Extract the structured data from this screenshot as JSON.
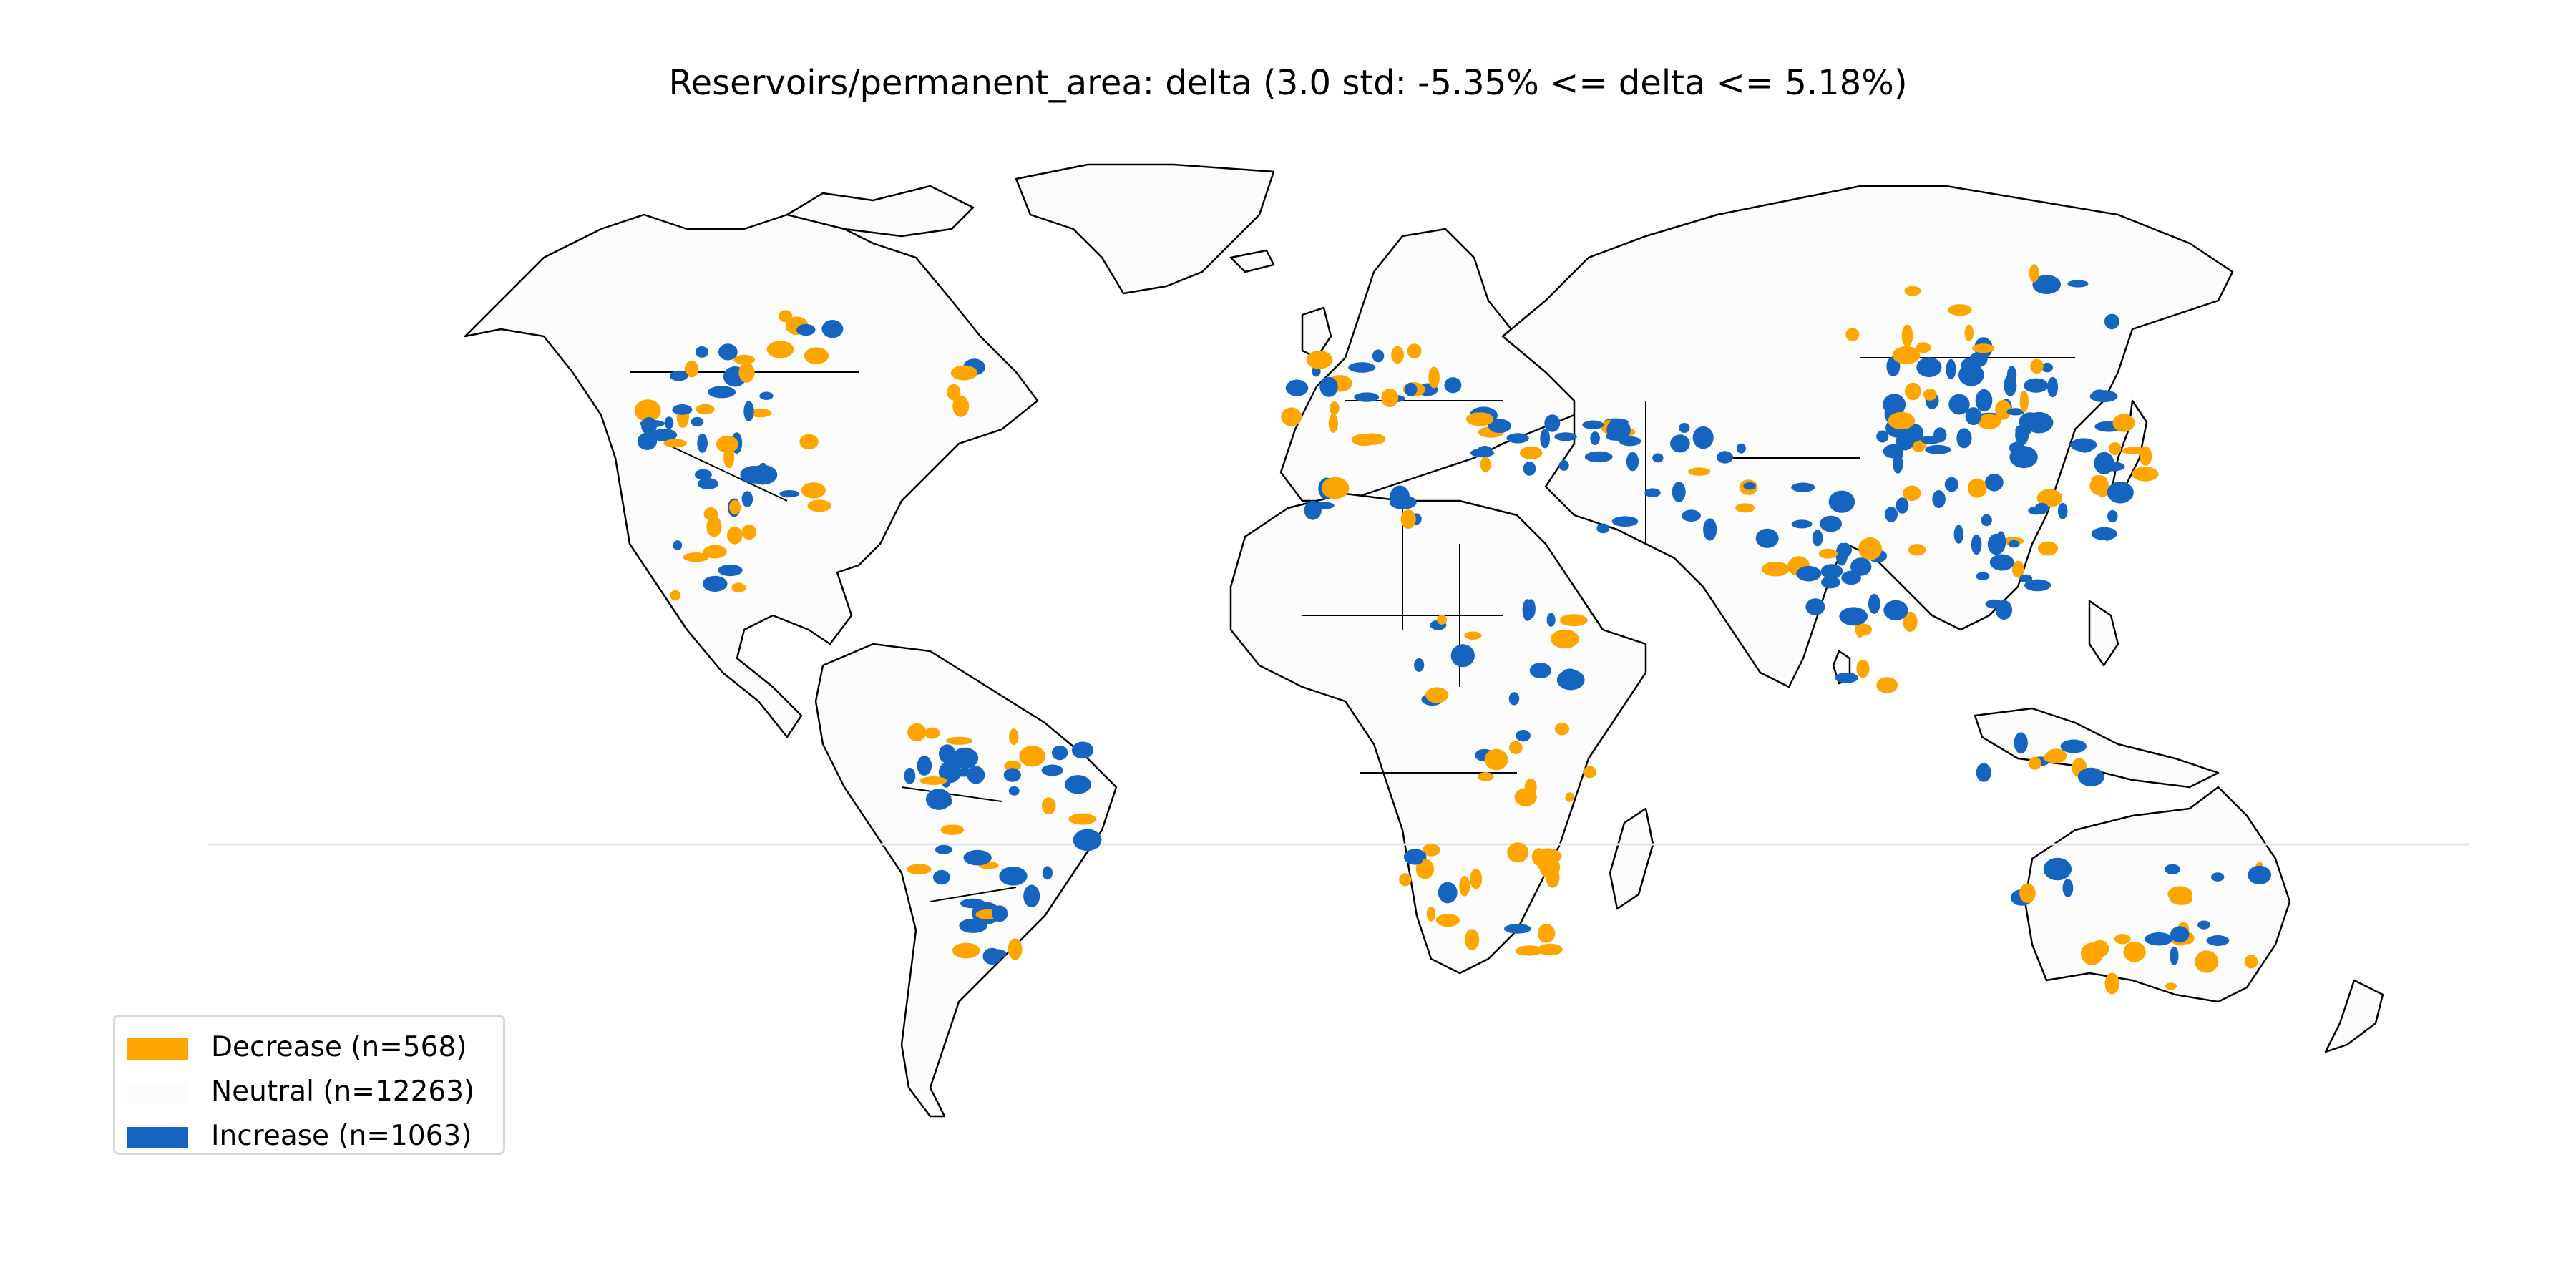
{
  "title": "Reservoirs/permanent_area: delta (3.0 std: -5.35% <= delta <= 5.18%)",
  "legend": {
    "placement": "lower-left",
    "items": [
      {
        "label": "Decrease (n=568)",
        "color": "#FFA500"
      },
      {
        "label": "Neutral (n=12263)",
        "color": "#FCFCFC"
      },
      {
        "label": "Increase (n=1063)",
        "color": "#1565C0"
      }
    ]
  },
  "map": {
    "projection": "equirectangular",
    "land_color": "#FCFCFC",
    "border_color": "#000000",
    "background": "#FFFFFF"
  },
  "colors": {
    "decrease": "#FFA500",
    "neutral": "#FCFCFC",
    "increase": "#1565C0"
  }
}
